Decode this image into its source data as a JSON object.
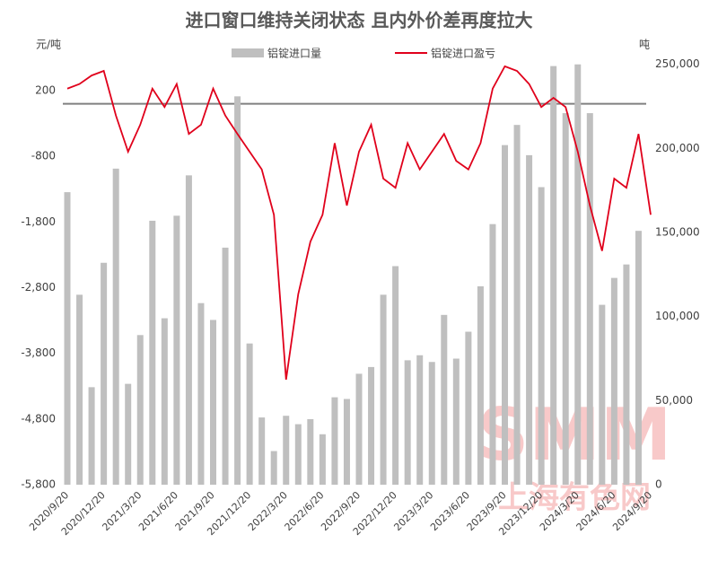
{
  "chart_data": {
    "type": "bar-line",
    "title": "进口窗口维持关闭状态 且内外价差再度拉大",
    "y_label": "元/吨",
    "y2_label": "吨",
    "watermark": "SMM",
    "watermark_sub": "上海有色网",
    "categories": [
      "2020/9/20",
      null,
      null,
      "2020/12/20",
      null,
      null,
      "2021/3/20",
      null,
      null,
      "2021/6/20",
      null,
      null,
      "2021/9/20",
      null,
      null,
      "2021/12/20",
      null,
      null,
      "2022/3/20",
      null,
      null,
      "2022/6/20",
      null,
      null,
      "2022/9/20",
      null,
      null,
      "2022/12/20",
      null,
      null,
      "2023/3/20",
      null,
      null,
      "2023/6/20",
      null,
      null,
      "2023/9/20",
      null,
      null,
      "2023/12/20",
      null,
      null,
      "2024/3/20",
      null,
      null,
      "2024/6/20",
      null,
      null,
      "2024/9/20"
    ],
    "series": [
      {
        "name": "铝锭进口量",
        "type": "bar",
        "axis": "y2",
        "color": "#bfbfbf",
        "values": [
          174000,
          113000,
          58000,
          132000,
          188000,
          60000,
          89000,
          157000,
          99000,
          160000,
          184000,
          108000,
          98000,
          141000,
          231000,
          84000,
          40000,
          20000,
          41000,
          36000,
          39000,
          30000,
          52000,
          51000,
          66000,
          70000,
          113000,
          130000,
          74000,
          77000,
          73000,
          101000,
          75000,
          91000,
          118000,
          155000,
          202000,
          214000,
          196000,
          177000,
          249000,
          221000,
          250000,
          221000,
          107000,
          123000,
          131000,
          151000,
          null
        ]
      },
      {
        "name": "铝锭进口盈亏",
        "type": "line",
        "axis": "y",
        "color": "#e0001b",
        "values": [
          230,
          300,
          430,
          500,
          -180,
          -730,
          -320,
          230,
          -50,
          300,
          -460,
          -320,
          230,
          -180,
          -460,
          -730,
          -1000,
          -1690,
          -4200,
          -2900,
          -2100,
          -1690,
          -600,
          -1550,
          -730,
          -320,
          -1140,
          -1280,
          -600,
          -1000,
          -730,
          -460,
          -870,
          -1000,
          -600,
          230,
          570,
          500,
          300,
          -50,
          90,
          -50,
          -730,
          -1550,
          -2240,
          -1140,
          -1280,
          -460,
          -1690
        ]
      }
    ],
    "ylim": [
      -5800,
      650
    ],
    "yticks": [
      {
        "value": 200,
        "label": "200"
      },
      {
        "value": -800,
        "label": "-800"
      },
      {
        "value": -1800,
        "label": "-1,800"
      },
      {
        "value": -2800,
        "label": "-2,800"
      },
      {
        "value": -3800,
        "label": "-3,800"
      },
      {
        "value": -4800,
        "label": "-4,800"
      },
      {
        "value": -5800,
        "label": "-5,800"
      }
    ],
    "y2lim": [
      0,
      252000
    ],
    "y2ticks": [
      0,
      {
        "value": 50000,
        "label": "50,000"
      },
      {
        "value": 100000,
        "label": "100,000"
      },
      {
        "value": 150000,
        "label": "150,000"
      },
      {
        "value": 200000,
        "label": "200,000"
      },
      {
        "value": 250000,
        "label": "250,000"
      }
    ],
    "legend": "top"
  }
}
